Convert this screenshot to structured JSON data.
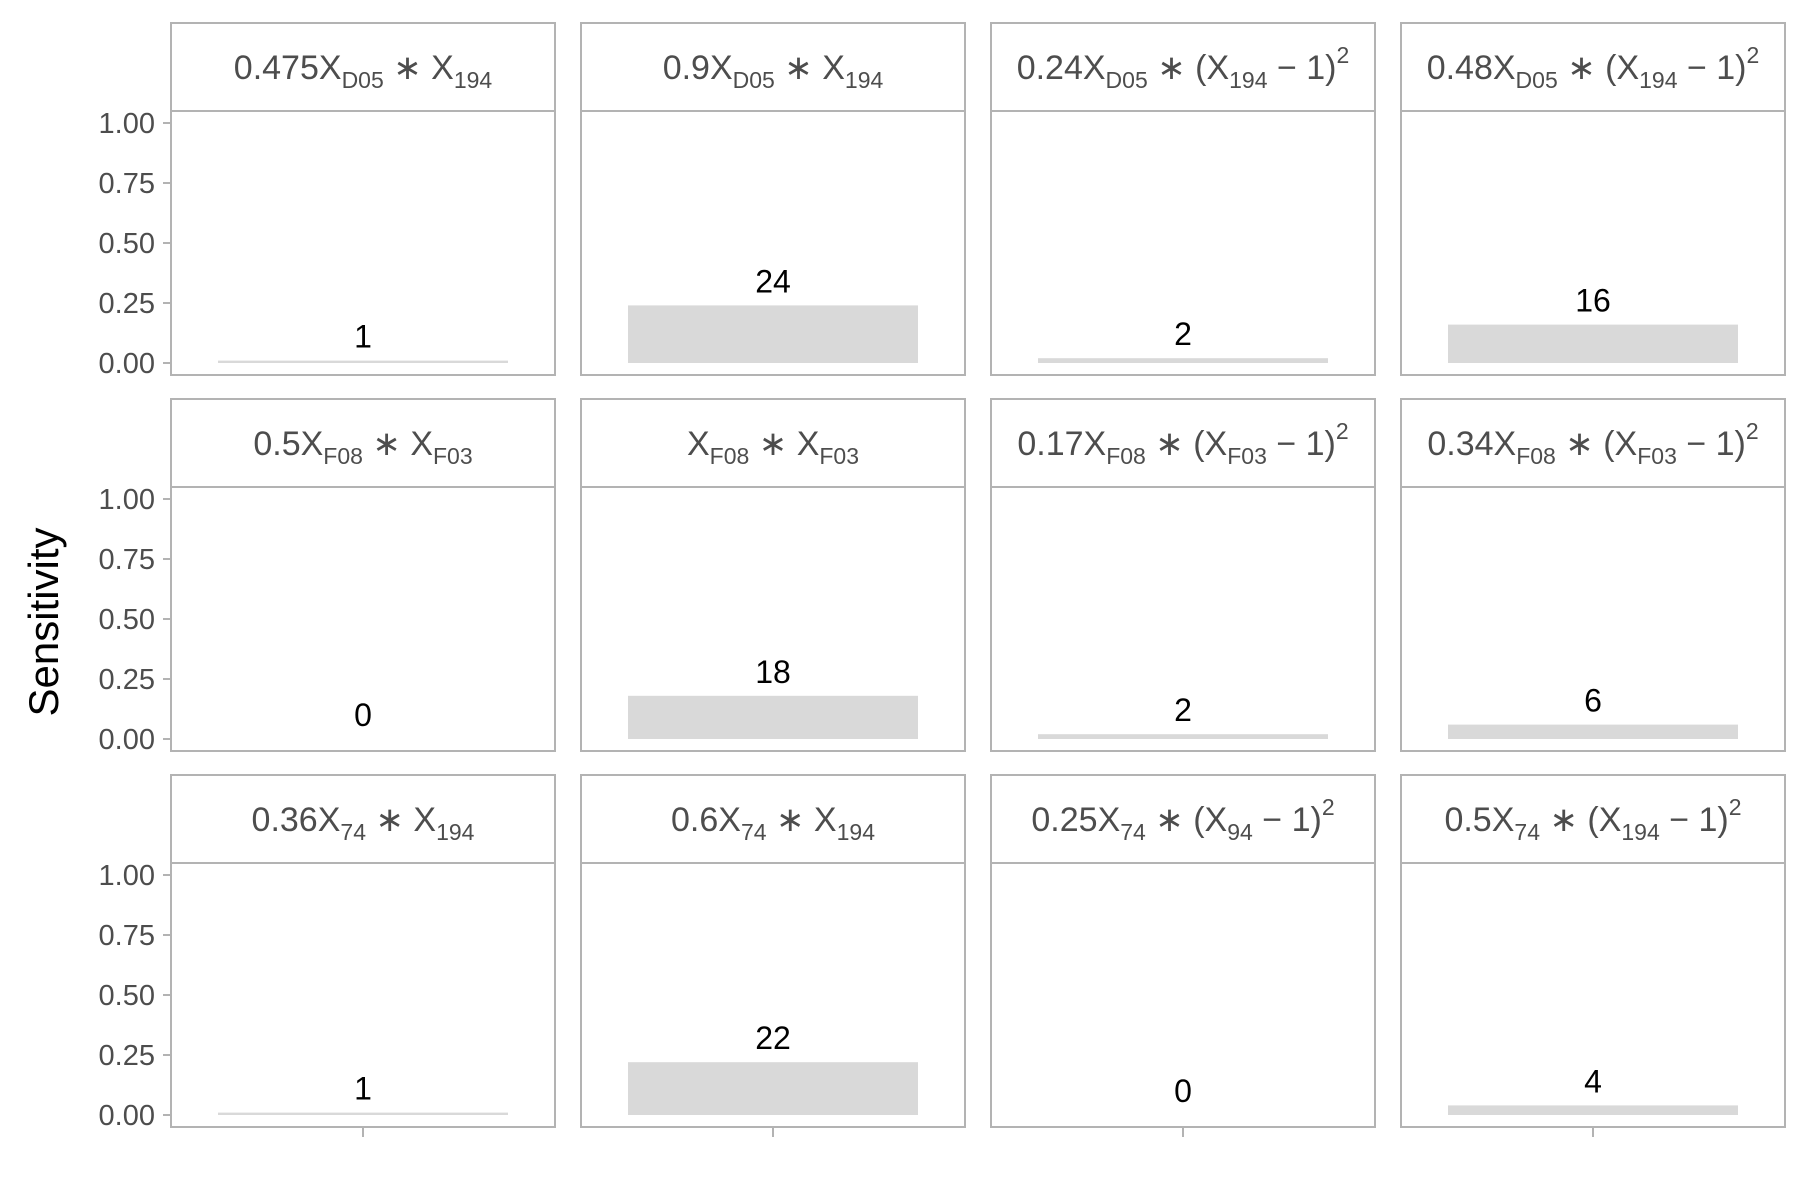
{
  "chart_data": {
    "type": "bar",
    "layout": "facet-grid",
    "ylabel": "Sensitivity",
    "xlabel": "",
    "ylim": [
      0,
      1
    ],
    "yticks": [
      "0.00",
      "0.25",
      "0.50",
      "0.75",
      "1.00"
    ],
    "grid": false,
    "colors": {
      "bar": "#d9d9d9",
      "strip_fill": "#ffffff",
      "panel_border": "#b3b3b3",
      "strip_text": "#4d4d4d",
      "tick_text": "#4d4d4d",
      "label_text": "#000000"
    },
    "panels": [
      {
        "row": 0,
        "col": 0,
        "title": [
          [
            "t",
            "0.475X"
          ],
          [
            "sub",
            "D05"
          ],
          [
            "t",
            " ∗ X"
          ],
          [
            "sub",
            "194"
          ]
        ],
        "value": 0.01,
        "label": "1"
      },
      {
        "row": 0,
        "col": 1,
        "title": [
          [
            "t",
            "0.9X"
          ],
          [
            "sub",
            "D05"
          ],
          [
            "t",
            " ∗ X"
          ],
          [
            "sub",
            "194"
          ]
        ],
        "value": 0.24,
        "label": "24"
      },
      {
        "row": 0,
        "col": 2,
        "title": [
          [
            "t",
            "0.24X"
          ],
          [
            "sub",
            "D05"
          ],
          [
            "t",
            " ∗ (X"
          ],
          [
            "sub",
            "194"
          ],
          [
            "t",
            " − 1)"
          ],
          [
            "sup",
            "2"
          ]
        ],
        "value": 0.02,
        "label": "2"
      },
      {
        "row": 0,
        "col": 3,
        "title": [
          [
            "t",
            "0.48X"
          ],
          [
            "sub",
            "D05"
          ],
          [
            "t",
            " ∗ (X"
          ],
          [
            "sub",
            "194"
          ],
          [
            "t",
            " − 1)"
          ],
          [
            "sup",
            "2"
          ]
        ],
        "value": 0.16,
        "label": "16"
      },
      {
        "row": 1,
        "col": 0,
        "title": [
          [
            "t",
            "0.5X"
          ],
          [
            "sub",
            "F08"
          ],
          [
            "t",
            " ∗ X"
          ],
          [
            "sub",
            "F03"
          ]
        ],
        "value": 0.0,
        "label": "0"
      },
      {
        "row": 1,
        "col": 1,
        "title": [
          [
            "t",
            "X"
          ],
          [
            "sub",
            "F08"
          ],
          [
            "t",
            " ∗ X"
          ],
          [
            "sub",
            "F03"
          ]
        ],
        "value": 0.18,
        "label": "18"
      },
      {
        "row": 1,
        "col": 2,
        "title": [
          [
            "t",
            "0.17X"
          ],
          [
            "sub",
            "F08"
          ],
          [
            "t",
            " ∗ (X"
          ],
          [
            "sub",
            "F03"
          ],
          [
            "t",
            " − 1)"
          ],
          [
            "sup",
            "2"
          ]
        ],
        "value": 0.02,
        "label": "2"
      },
      {
        "row": 1,
        "col": 3,
        "title": [
          [
            "t",
            "0.34X"
          ],
          [
            "sub",
            "F08"
          ],
          [
            "t",
            " ∗ (X"
          ],
          [
            "sub",
            "F03"
          ],
          [
            "t",
            " − 1)"
          ],
          [
            "sup",
            "2"
          ]
        ],
        "value": 0.06,
        "label": "6"
      },
      {
        "row": 2,
        "col": 0,
        "title": [
          [
            "t",
            "0.36X"
          ],
          [
            "sub",
            "74"
          ],
          [
            "t",
            " ∗ X"
          ],
          [
            "sub",
            "194"
          ]
        ],
        "value": 0.01,
        "label": "1"
      },
      {
        "row": 2,
        "col": 1,
        "title": [
          [
            "t",
            "0.6X"
          ],
          [
            "sub",
            "74"
          ],
          [
            "t",
            " ∗ X"
          ],
          [
            "sub",
            "194"
          ]
        ],
        "value": 0.22,
        "label": "22"
      },
      {
        "row": 2,
        "col": 2,
        "title": [
          [
            "t",
            "0.25X"
          ],
          [
            "sub",
            "74"
          ],
          [
            "t",
            " ∗ (X"
          ],
          [
            "sub",
            "94"
          ],
          [
            "t",
            " − 1)"
          ],
          [
            "sup",
            "2"
          ]
        ],
        "value": 0.0,
        "label": "0"
      },
      {
        "row": 2,
        "col": 3,
        "title": [
          [
            "t",
            "0.5X"
          ],
          [
            "sub",
            "74"
          ],
          [
            "t",
            " ∗ (X"
          ],
          [
            "sub",
            "194"
          ],
          [
            "t",
            " − 1)"
          ],
          [
            "sup",
            "2"
          ]
        ],
        "value": 0.04,
        "label": "4"
      }
    ]
  }
}
